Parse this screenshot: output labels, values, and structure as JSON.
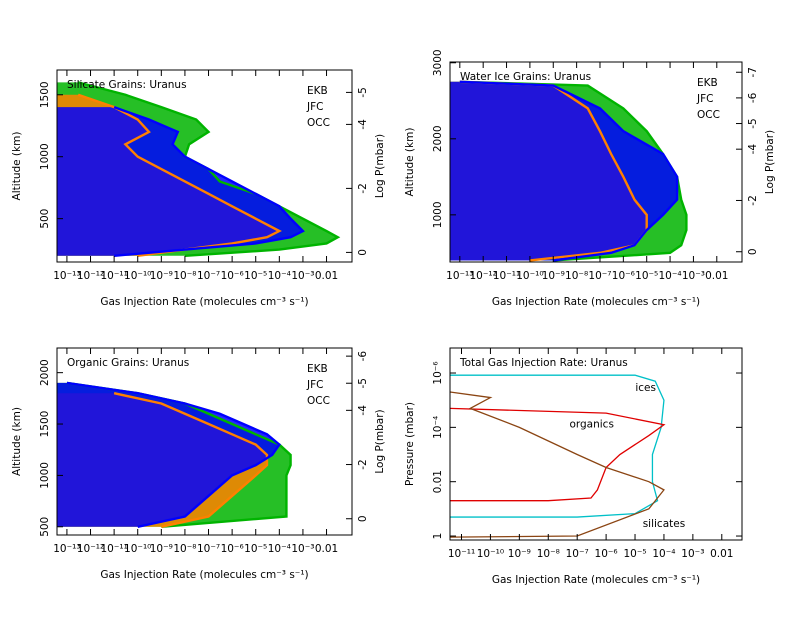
{
  "chart_data": [
    {
      "type": "line",
      "title": "Silicate Grains: Uranus",
      "xlabel": "Gas Injection Rate (molecules cm⁻³ s⁻¹)",
      "ylabel": "Altitude (km)",
      "y2label": "Log P(mbar)",
      "xlog": true,
      "xlim": [
        3.8e-14,
        0.12
      ],
      "xticks": [
        {
          "value": 1e-13,
          "label": "10⁻¹³"
        },
        {
          "value": 1e-12,
          "label": "10⁻¹²"
        },
        {
          "value": 1e-11,
          "label": "10⁻¹¹"
        },
        {
          "value": 1e-10,
          "label": "10⁻¹⁰"
        },
        {
          "value": 1e-09,
          "label": "10⁻⁹"
        },
        {
          "value": 1e-08,
          "label": "10⁻⁸"
        },
        {
          "value": 1e-07,
          "label": "10⁻⁷"
        },
        {
          "value": 1e-06,
          "label": "10⁻⁶"
        },
        {
          "value": 1e-05,
          "label": "10⁻⁵"
        },
        {
          "value": 0.0001,
          "label": "10⁻⁴"
        },
        {
          "value": 0.001,
          "label": "10⁻³"
        },
        0.01
      ],
      "ylim": [
        150,
        1700
      ],
      "yticks": [
        500,
        1000,
        1500
      ],
      "y2lim": [
        0.3,
        -5.7
      ],
      "y2ticks": [
        0,
        -2,
        -4,
        -5
      ],
      "legend": "top right",
      "y": [
        200,
        250,
        300,
        350,
        400,
        500,
        600,
        700,
        800,
        900,
        1000,
        1100,
        1200,
        1300,
        1400,
        1500,
        1600
      ],
      "series": [
        {
          "name": "EKB",
          "color": "#00b400",
          "values": [
            1e-08,
            0.0001,
            0.01,
            0.03,
            0.01,
            0.001,
            0.0001,
            1e-05,
            3e-07,
            1e-07,
            1e-08,
            1.5e-08,
            1e-07,
            3e-08,
            1e-09,
            3e-11,
            3e-13
          ]
        },
        {
          "name": "JFC",
          "color": "#ff8000",
          "values": [
            1e-10,
            1e-08,
            1e-06,
            3e-05,
            0.0001,
            1e-05,
            1e-06,
            1e-07,
            1e-08,
            1e-09,
            1e-10,
            3e-11,
            3e-10,
            1e-10,
            1e-11,
            3e-13,
            null
          ]
        },
        {
          "name": "OCC",
          "color": "#0000ff",
          "values": [
            1e-11,
            1e-08,
            1e-05,
            0.0003,
            0.001,
            0.0003,
            0.0001,
            1e-05,
            1e-06,
            1e-07,
            1e-08,
            3e-09,
            5e-09,
            3e-10,
            1e-11,
            null,
            null
          ]
        }
      ]
    },
    {
      "type": "line",
      "title": "Water Ice Grains: Uranus",
      "xlabel": "Gas Injection Rate (molecules cm⁻³ s⁻¹)",
      "ylabel": "Altitude (km)",
      "y2label": "Log P(mbar)",
      "xlog": true,
      "xlim": [
        3.8e-14,
        0.12
      ],
      "xticks": [
        {
          "value": 1e-13,
          "label": "10⁻¹³"
        },
        {
          "value": 1e-12,
          "label": "10⁻¹²"
        },
        {
          "value": 1e-11,
          "label": "10⁻¹¹"
        },
        {
          "value": 1e-10,
          "label": "10⁻¹⁰"
        },
        {
          "value": 1e-09,
          "label": "10⁻⁹"
        },
        {
          "value": 1e-08,
          "label": "10⁻⁸"
        },
        {
          "value": 1e-07,
          "label": "10⁻⁷"
        },
        {
          "value": 1e-06,
          "label": "10⁻⁶"
        },
        {
          "value": 1e-05,
          "label": "10⁻⁵"
        },
        {
          "value": 0.0001,
          "label": "10⁻⁴"
        },
        {
          "value": 0.001,
          "label": "10⁻³"
        },
        0.01
      ],
      "ylim": [
        380,
        3010
      ],
      "yticks": [
        1000,
        2000,
        3000
      ],
      "y2lim": [
        0.4,
        -7.4
      ],
      "y2ticks": [
        0,
        -2,
        -4,
        -5,
        -6,
        -7
      ],
      "legend": "top right",
      "y": [
        400,
        500,
        600,
        800,
        1000,
        1200,
        1500,
        1800,
        2100,
        2400,
        2700,
        2750
      ],
      "series": [
        {
          "name": "EKB",
          "color": "#00b400",
          "values": [
            1e-09,
            0.0001,
            0.0003,
            0.0005,
            0.0005,
            0.0003,
            0.0002,
            5e-05,
            1e-05,
            1e-06,
            3e-08,
            1e-13
          ]
        },
        {
          "name": "JFC",
          "color": "#ff8000",
          "values": [
            1e-10,
            1e-07,
            3e-06,
            1e-05,
            1e-05,
            3e-06,
            1e-06,
            3e-07,
            1e-07,
            3e-08,
            1e-09,
            1e-13
          ]
        },
        {
          "name": "OCC",
          "color": "#0000ff",
          "values": [
            1e-09,
            3e-07,
            3e-06,
            1e-05,
            5e-05,
            0.0002,
            0.0002,
            5e-05,
            1e-06,
            1e-07,
            1e-09,
            1e-13
          ]
        }
      ]
    },
    {
      "type": "line",
      "title": "Organic Grains: Uranus",
      "xlabel": "Gas Injection Rate (molecules cm⁻³ s⁻¹)",
      "ylabel": "Altitude (km)",
      "y2label": "Log P(mbar)",
      "xlog": true,
      "xlim": [
        3.8e-14,
        0.12
      ],
      "xticks": [
        {
          "value": 1e-13,
          "label": "10⁻¹³"
        },
        {
          "value": 1e-12,
          "label": "10⁻¹²"
        },
        {
          "value": 1e-11,
          "label": "10⁻¹¹"
        },
        {
          "value": 1e-10,
          "label": "10⁻¹⁰"
        },
        {
          "value": 1e-09,
          "label": "10⁻⁹"
        },
        {
          "value": 1e-08,
          "label": "10⁻⁸"
        },
        {
          "value": 1e-07,
          "label": "10⁻⁷"
        },
        {
          "value": 1e-06,
          "label": "10⁻⁶"
        },
        {
          "value": 1e-05,
          "label": "10⁻⁵"
        },
        {
          "value": 0.0001,
          "label": "10⁻⁴"
        },
        {
          "value": 0.001,
          "label": "10⁻³"
        },
        0.01
      ],
      "ylim": [
        420,
        2240
      ],
      "yticks": [
        500,
        1000,
        1500,
        2000
      ],
      "y2lim": [
        0.6,
        -6.3
      ],
      "y2ticks": [
        0,
        -2,
        -4,
        -5,
        -6
      ],
      "legend": "top right",
      "y": [
        500,
        600,
        800,
        1000,
        1100,
        1200,
        1300,
        1400,
        1500,
        1600,
        1700,
        1800,
        1900
      ],
      "series": [
        {
          "name": "EKB",
          "color": "#00b400",
          "values": [
            1e-09,
            0.0002,
            0.0002,
            0.0002,
            0.0003,
            0.0003,
            0.0001,
            1e-05,
            1e-06,
            1e-07,
            1e-08,
            1e-10,
            1e-13
          ]
        },
        {
          "name": "JFC",
          "color": "#ff8000",
          "values": [
            1e-09,
            1e-07,
            1e-06,
            1e-05,
            3e-05,
            3e-05,
            1e-05,
            1e-06,
            1e-07,
            1e-08,
            1e-09,
            1e-11,
            null
          ]
        },
        {
          "name": "OCC",
          "color": "#0000ff",
          "values": [
            1e-10,
            1e-08,
            1e-07,
            1e-06,
            1e-05,
            5e-05,
            0.0001,
            3e-05,
            3e-06,
            3e-07,
            1e-08,
            1e-10,
            1e-13
          ]
        }
      ]
    },
    {
      "type": "loop",
      "title": "Total Gas Injection Rate: Uranus",
      "xlabel": "Gas Injection Rate (molecules cm⁻³ s⁻¹)",
      "ylabel": "Pressure (mbar)",
      "xlog": true,
      "xlim": [
        4e-12,
        0.05
      ],
      "xticks": [
        {
          "value": 1e-11,
          "label": "10⁻¹¹"
        },
        {
          "value": 1e-10,
          "label": "10⁻¹⁰"
        },
        {
          "value": 1e-09,
          "label": "10⁻⁹"
        },
        {
          "value": 1e-08,
          "label": "10⁻⁸"
        },
        {
          "value": 1e-07,
          "label": "10⁻⁷"
        },
        {
          "value": 1e-06,
          "label": "10⁻⁶"
        },
        {
          "value": 1e-05,
          "label": "10⁻⁵"
        },
        {
          "value": 0.0001,
          "label": "10⁻⁴"
        },
        {
          "value": 0.001,
          "label": "10⁻³"
        },
        0.01
      ],
      "ylog": true,
      "ylim": [
        1.4,
        1.2e-07
      ],
      "yticks": [
        {
          "value": 1e-06,
          "label": "10⁻⁶"
        },
        {
          "value": 0.0001,
          "label": "10⁻⁴"
        },
        0.01,
        1
      ],
      "series": [
        {
          "name": "ices",
          "color": "#00c0c8",
          "x": [
            4e-12,
            1e-05,
            5e-05,
            0.0001,
            8e-05,
            4e-05,
            4e-05,
            6e-05,
            1e-05,
            1e-07,
            4e-12
          ],
          "values": [
            1.2e-06,
            1.2e-06,
            2e-06,
            1e-05,
            0.0001,
            0.001,
            0.01,
            0.05,
            0.15,
            0.2,
            0.2
          ]
        },
        {
          "name": "organics",
          "color": "#e00000",
          "x": [
            4e-12,
            1e-06,
            0.0001,
            3e-05,
            3e-06,
            1e-06,
            5e-07,
            3e-07,
            1e-08,
            4e-12
          ],
          "values": [
            2e-05,
            3e-05,
            8e-05,
            0.0002,
            0.001,
            0.003,
            0.02,
            0.04,
            0.05,
            0.05
          ]
        },
        {
          "name": "silicates",
          "color": "#8b4513",
          "x": [
            4e-12,
            1e-10,
            2e-11,
            1e-09,
            1e-07,
            1e-06,
            3e-05,
            0.0001,
            3e-05,
            1e-07,
            4e-12
          ],
          "values": [
            5e-06,
            8e-06,
            2e-05,
            0.0001,
            0.001,
            0.003,
            0.01,
            0.02,
            0.1,
            1,
            1.1
          ]
        }
      ]
    }
  ]
}
